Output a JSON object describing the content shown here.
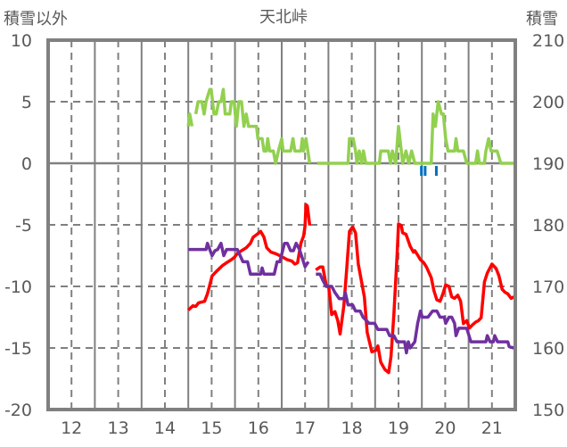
{
  "chart_data": {
    "type": "line",
    "title": "天北峠",
    "ylabel_left": "積雪以外",
    "ylabel_right": "積雪",
    "xlim": [
      11.5,
      21.5
    ],
    "ylim_left": [
      -20,
      10
    ],
    "ylim_right": [
      150,
      210
    ],
    "x_ticks": [
      "12",
      "13",
      "14",
      "15",
      "16",
      "17",
      "18",
      "19",
      "20",
      "21"
    ],
    "y_ticks_left": [
      "10",
      "5",
      "0",
      "-5",
      "-10",
      "-15",
      "-20"
    ],
    "y_ticks_right": [
      "210",
      "200",
      "190",
      "180",
      "170",
      "160",
      "150"
    ],
    "grid": true,
    "series": [
      {
        "name": "green",
        "color": "#92D050",
        "points": [
          [
            14.5,
            3
          ],
          [
            14.53,
            4
          ],
          [
            14.58,
            3
          ],
          null,
          [
            14.66,
            4
          ],
          [
            14.71,
            5
          ],
          [
            14.79,
            5
          ],
          [
            14.84,
            4
          ],
          [
            14.88,
            5
          ],
          [
            14.96,
            6
          ],
          [
            14.99,
            6
          ],
          [
            15.05,
            4
          ],
          [
            15.1,
            4
          ],
          [
            15.15,
            5
          ],
          [
            15.2,
            5
          ],
          [
            15.25,
            6
          ],
          [
            15.29,
            4
          ],
          [
            15.39,
            4
          ],
          [
            15.42,
            5
          ],
          [
            15.48,
            5
          ],
          [
            15.53,
            3
          ],
          [
            15.58,
            5
          ],
          [
            15.64,
            5
          ],
          [
            15.69,
            3
          ],
          [
            15.74,
            4
          ],
          [
            15.79,
            3
          ],
          [
            15.96,
            3
          ],
          [
            15.99,
            2
          ],
          [
            16.08,
            2
          ],
          [
            16.12,
            1
          ],
          [
            16.17,
            1
          ],
          [
            16.2,
            2
          ],
          [
            16.24,
            1
          ],
          [
            16.32,
            1
          ],
          [
            16.37,
            0
          ],
          [
            16.43,
            1
          ],
          [
            16.5,
            2
          ],
          [
            16.53,
            1
          ],
          [
            16.69,
            1
          ],
          [
            16.74,
            2
          ],
          [
            16.78,
            1
          ],
          [
            16.91,
            1
          ],
          [
            16.94,
            2
          ],
          [
            16.97,
            1
          ],
          [
            17.02,
            2
          ],
          [
            17.1,
            0
          ],
          null,
          [
            17.26,
            0
          ],
          [
            17.92,
            0
          ],
          [
            17.95,
            2
          ],
          [
            18.03,
            2
          ],
          [
            18.08,
            1
          ],
          [
            18.11,
            0
          ],
          [
            18.16,
            1
          ],
          [
            18.21,
            0
          ],
          [
            18.25,
            1
          ],
          [
            18.3,
            0
          ],
          [
            18.37,
            0
          ],
          [
            18.59,
            0
          ],
          [
            18.62,
            1
          ],
          [
            18.78,
            1
          ],
          [
            18.83,
            0
          ],
          [
            18.87,
            1
          ],
          [
            18.94,
            0
          ],
          [
            19.0,
            3
          ],
          [
            19.03,
            2
          ],
          [
            19.09,
            0
          ],
          [
            19.16,
            1
          ],
          [
            19.22,
            0
          ],
          [
            19.28,
            1
          ],
          [
            19.35,
            0
          ],
          [
            19.41,
            0
          ],
          [
            19.7,
            0
          ],
          [
            19.74,
            4
          ],
          [
            19.79,
            3
          ],
          [
            19.85,
            5
          ],
          [
            19.92,
            4
          ],
          [
            19.96,
            4
          ],
          [
            20.01,
            2
          ],
          [
            20.06,
            1
          ],
          [
            20.2,
            1
          ],
          [
            20.23,
            2
          ],
          [
            20.27,
            1
          ],
          [
            20.39,
            1
          ],
          [
            20.46,
            0
          ],
          [
            20.65,
            0
          ],
          [
            20.69,
            1
          ],
          [
            20.73,
            0
          ],
          [
            20.84,
            0
          ],
          [
            20.87,
            1
          ],
          [
            20.93,
            2
          ],
          [
            20.98,
            1
          ],
          [
            21.11,
            1
          ],
          [
            21.19,
            0
          ],
          [
            21.47,
            0
          ]
        ]
      },
      {
        "name": "red",
        "color": "#FF0000",
        "points": [
          [
            14.5,
            -11.93
          ],
          [
            14.6,
            -11.57
          ],
          [
            14.66,
            -11.62
          ],
          [
            14.72,
            -11.33
          ],
          [
            14.85,
            -11.21
          ],
          [
            14.91,
            -10.6
          ],
          [
            15.01,
            -9.15
          ],
          [
            15.1,
            -8.79
          ],
          [
            15.23,
            -8.31
          ],
          [
            15.32,
            -8.07
          ],
          [
            15.42,
            -7.83
          ],
          [
            15.48,
            -7.66
          ],
          [
            15.55,
            -7.34
          ],
          [
            15.64,
            -7.1
          ],
          [
            15.74,
            -6.86
          ],
          [
            15.83,
            -6.5
          ],
          [
            15.89,
            -6.01
          ],
          [
            15.99,
            -5.72
          ],
          [
            16.05,
            -5.53
          ],
          [
            16.12,
            -6.01
          ],
          [
            16.18,
            -6.86
          ],
          [
            16.27,
            -7.22
          ],
          [
            16.37,
            -7.34
          ],
          [
            16.5,
            -7.58
          ],
          [
            16.62,
            -7.83
          ],
          [
            16.72,
            -7.95
          ],
          [
            16.78,
            -8.19
          ],
          [
            16.84,
            -8.07
          ],
          [
            16.91,
            -6.5
          ],
          [
            16.97,
            -5.89
          ],
          [
            17.0,
            -5.05
          ],
          [
            17.02,
            -3.36
          ],
          [
            17.05,
            -3.48
          ],
          [
            17.1,
            -5.05
          ],
          null,
          [
            17.23,
            -8.67
          ],
          [
            17.32,
            -8.43
          ],
          [
            17.38,
            -8.43
          ],
          [
            17.45,
            -9.88
          ],
          [
            17.51,
            -10.12
          ],
          [
            17.57,
            -12.29
          ],
          [
            17.64,
            -12.05
          ],
          [
            17.7,
            -12.78
          ],
          [
            17.75,
            -13.86
          ],
          [
            17.83,
            -11.57
          ],
          [
            17.89,
            -8.67
          ],
          [
            17.95,
            -5.53
          ],
          [
            18.02,
            -5.17
          ],
          [
            18.08,
            -5.65
          ],
          [
            18.14,
            -8.19
          ],
          [
            18.21,
            -9.64
          ],
          [
            18.27,
            -10.85
          ],
          [
            18.33,
            -13.74
          ],
          [
            18.43,
            -15.31
          ],
          [
            18.52,
            -15.19
          ],
          [
            18.56,
            -14.83
          ],
          [
            18.62,
            -16.16
          ],
          [
            18.71,
            -16.76
          ],
          [
            18.79,
            -17.0
          ],
          [
            18.84,
            -15.68
          ],
          [
            18.9,
            -12.29
          ],
          [
            18.97,
            -7.46
          ],
          [
            19.0,
            -4.93
          ],
          [
            19.06,
            -5.05
          ],
          [
            19.09,
            -5.65
          ],
          [
            19.16,
            -5.77
          ],
          [
            19.25,
            -6.74
          ],
          [
            19.32,
            -7.22
          ],
          [
            19.35,
            -7.1
          ],
          [
            19.41,
            -7.46
          ],
          [
            19.47,
            -7.83
          ],
          [
            19.54,
            -8.07
          ],
          [
            19.6,
            -8.43
          ],
          [
            19.7,
            -9.28
          ],
          [
            19.76,
            -10.36
          ],
          [
            19.82,
            -11.09
          ],
          [
            19.89,
            -11.21
          ],
          [
            19.95,
            -10.6
          ],
          [
            20.01,
            -9.88
          ],
          [
            20.08,
            -10.0
          ],
          [
            20.14,
            -10.85
          ],
          [
            20.2,
            -10.97
          ],
          [
            20.27,
            -10.72
          ],
          [
            20.33,
            -11.21
          ],
          [
            20.39,
            -13.02
          ],
          [
            20.46,
            -12.78
          ],
          [
            20.52,
            -13.38
          ],
          [
            20.58,
            -13.14
          ],
          [
            20.65,
            -12.9
          ],
          [
            20.71,
            -12.78
          ],
          [
            20.77,
            -12.54
          ],
          [
            20.84,
            -9.64
          ],
          [
            20.9,
            -8.91
          ],
          [
            21.0,
            -8.19
          ],
          [
            21.09,
            -8.55
          ],
          [
            21.15,
            -9.15
          ],
          [
            21.22,
            -10.24
          ],
          [
            21.28,
            -10.48
          ],
          [
            21.34,
            -10.6
          ],
          [
            21.41,
            -10.97
          ],
          [
            21.47,
            -10.85
          ]
        ]
      },
      {
        "name": "purple",
        "color": "#7030A0",
        "points": [
          [
            14.5,
            -7.0
          ],
          [
            14.88,
            -7.0
          ],
          [
            14.91,
            -6.5
          ],
          [
            15.01,
            -7.5
          ],
          [
            15.07,
            -7.1
          ],
          [
            15.13,
            -7.0
          ],
          [
            15.2,
            -6.5
          ],
          [
            15.26,
            -7.5
          ],
          [
            15.32,
            -7.0
          ],
          [
            15.55,
            -7.0
          ],
          [
            15.67,
            -8.0
          ],
          [
            15.77,
            -8.0
          ],
          [
            15.83,
            -9.0
          ],
          [
            16.05,
            -9.0
          ],
          [
            16.08,
            -8.5
          ],
          [
            16.12,
            -9.0
          ],
          [
            16.34,
            -9.0
          ],
          [
            16.4,
            -8.0
          ],
          [
            16.46,
            -8.0
          ],
          [
            16.56,
            -6.5
          ],
          [
            16.62,
            -6.5
          ],
          [
            16.69,
            -7.1
          ],
          [
            16.75,
            -7.1
          ],
          [
            16.81,
            -6.5
          ],
          [
            16.88,
            -7.0
          ],
          [
            16.94,
            -7.7
          ],
          [
            17.0,
            -8.4
          ],
          [
            17.07,
            -8.0
          ],
          null,
          [
            17.23,
            -9.0
          ],
          [
            17.32,
            -9.0
          ],
          [
            17.38,
            -9.5
          ],
          [
            17.45,
            -10.0
          ],
          [
            17.57,
            -10.0
          ],
          [
            17.64,
            -10.5
          ],
          [
            17.73,
            -11.0
          ],
          [
            17.83,
            -11.0
          ],
          [
            17.86,
            -10.5
          ],
          [
            17.92,
            -11.5
          ],
          [
            18.02,
            -11.5
          ],
          [
            18.08,
            -12.0
          ],
          [
            18.18,
            -12.0
          ],
          [
            18.24,
            -12.5
          ],
          [
            18.37,
            -13.0
          ],
          [
            18.49,
            -13.0
          ],
          [
            18.56,
            -13.5
          ],
          [
            18.75,
            -13.5
          ],
          [
            18.81,
            -14.0
          ],
          [
            18.9,
            -14.0
          ],
          [
            18.97,
            -14.5
          ],
          [
            19.13,
            -14.5
          ],
          [
            19.17,
            -15.4
          ],
          [
            19.21,
            -14.5
          ],
          [
            19.25,
            -15.0
          ],
          [
            19.35,
            -14.5
          ],
          [
            19.41,
            -13.0
          ],
          [
            19.47,
            -12.0
          ],
          [
            19.51,
            -12.5
          ],
          [
            19.63,
            -12.5
          ],
          [
            19.73,
            -12.0
          ],
          [
            19.82,
            -12.0
          ],
          [
            19.89,
            -12.5
          ],
          [
            19.98,
            -12.5
          ],
          [
            20.01,
            -13.0
          ],
          [
            20.08,
            -12.5
          ],
          [
            20.14,
            -12.5
          ],
          [
            20.2,
            -13.0
          ],
          [
            20.23,
            -14.0
          ],
          [
            20.29,
            -13.4
          ],
          [
            20.46,
            -13.4
          ],
          [
            20.55,
            -14.5
          ],
          [
            20.87,
            -14.5
          ],
          [
            20.9,
            -14.0
          ],
          [
            20.96,
            -14.5
          ],
          [
            21.03,
            -14.5
          ],
          [
            21.06,
            -14.0
          ],
          [
            21.12,
            -14.5
          ],
          [
            21.34,
            -14.5
          ],
          [
            21.37,
            -14.9
          ],
          [
            21.47,
            -15.0
          ]
        ]
      },
      {
        "name": "blue-bars",
        "color": "#0070C0",
        "type": "bar",
        "points": [
          [
            19.49,
            -0.8
          ],
          [
            19.57,
            -0.8
          ],
          [
            19.81,
            -0.8
          ]
        ]
      }
    ]
  }
}
